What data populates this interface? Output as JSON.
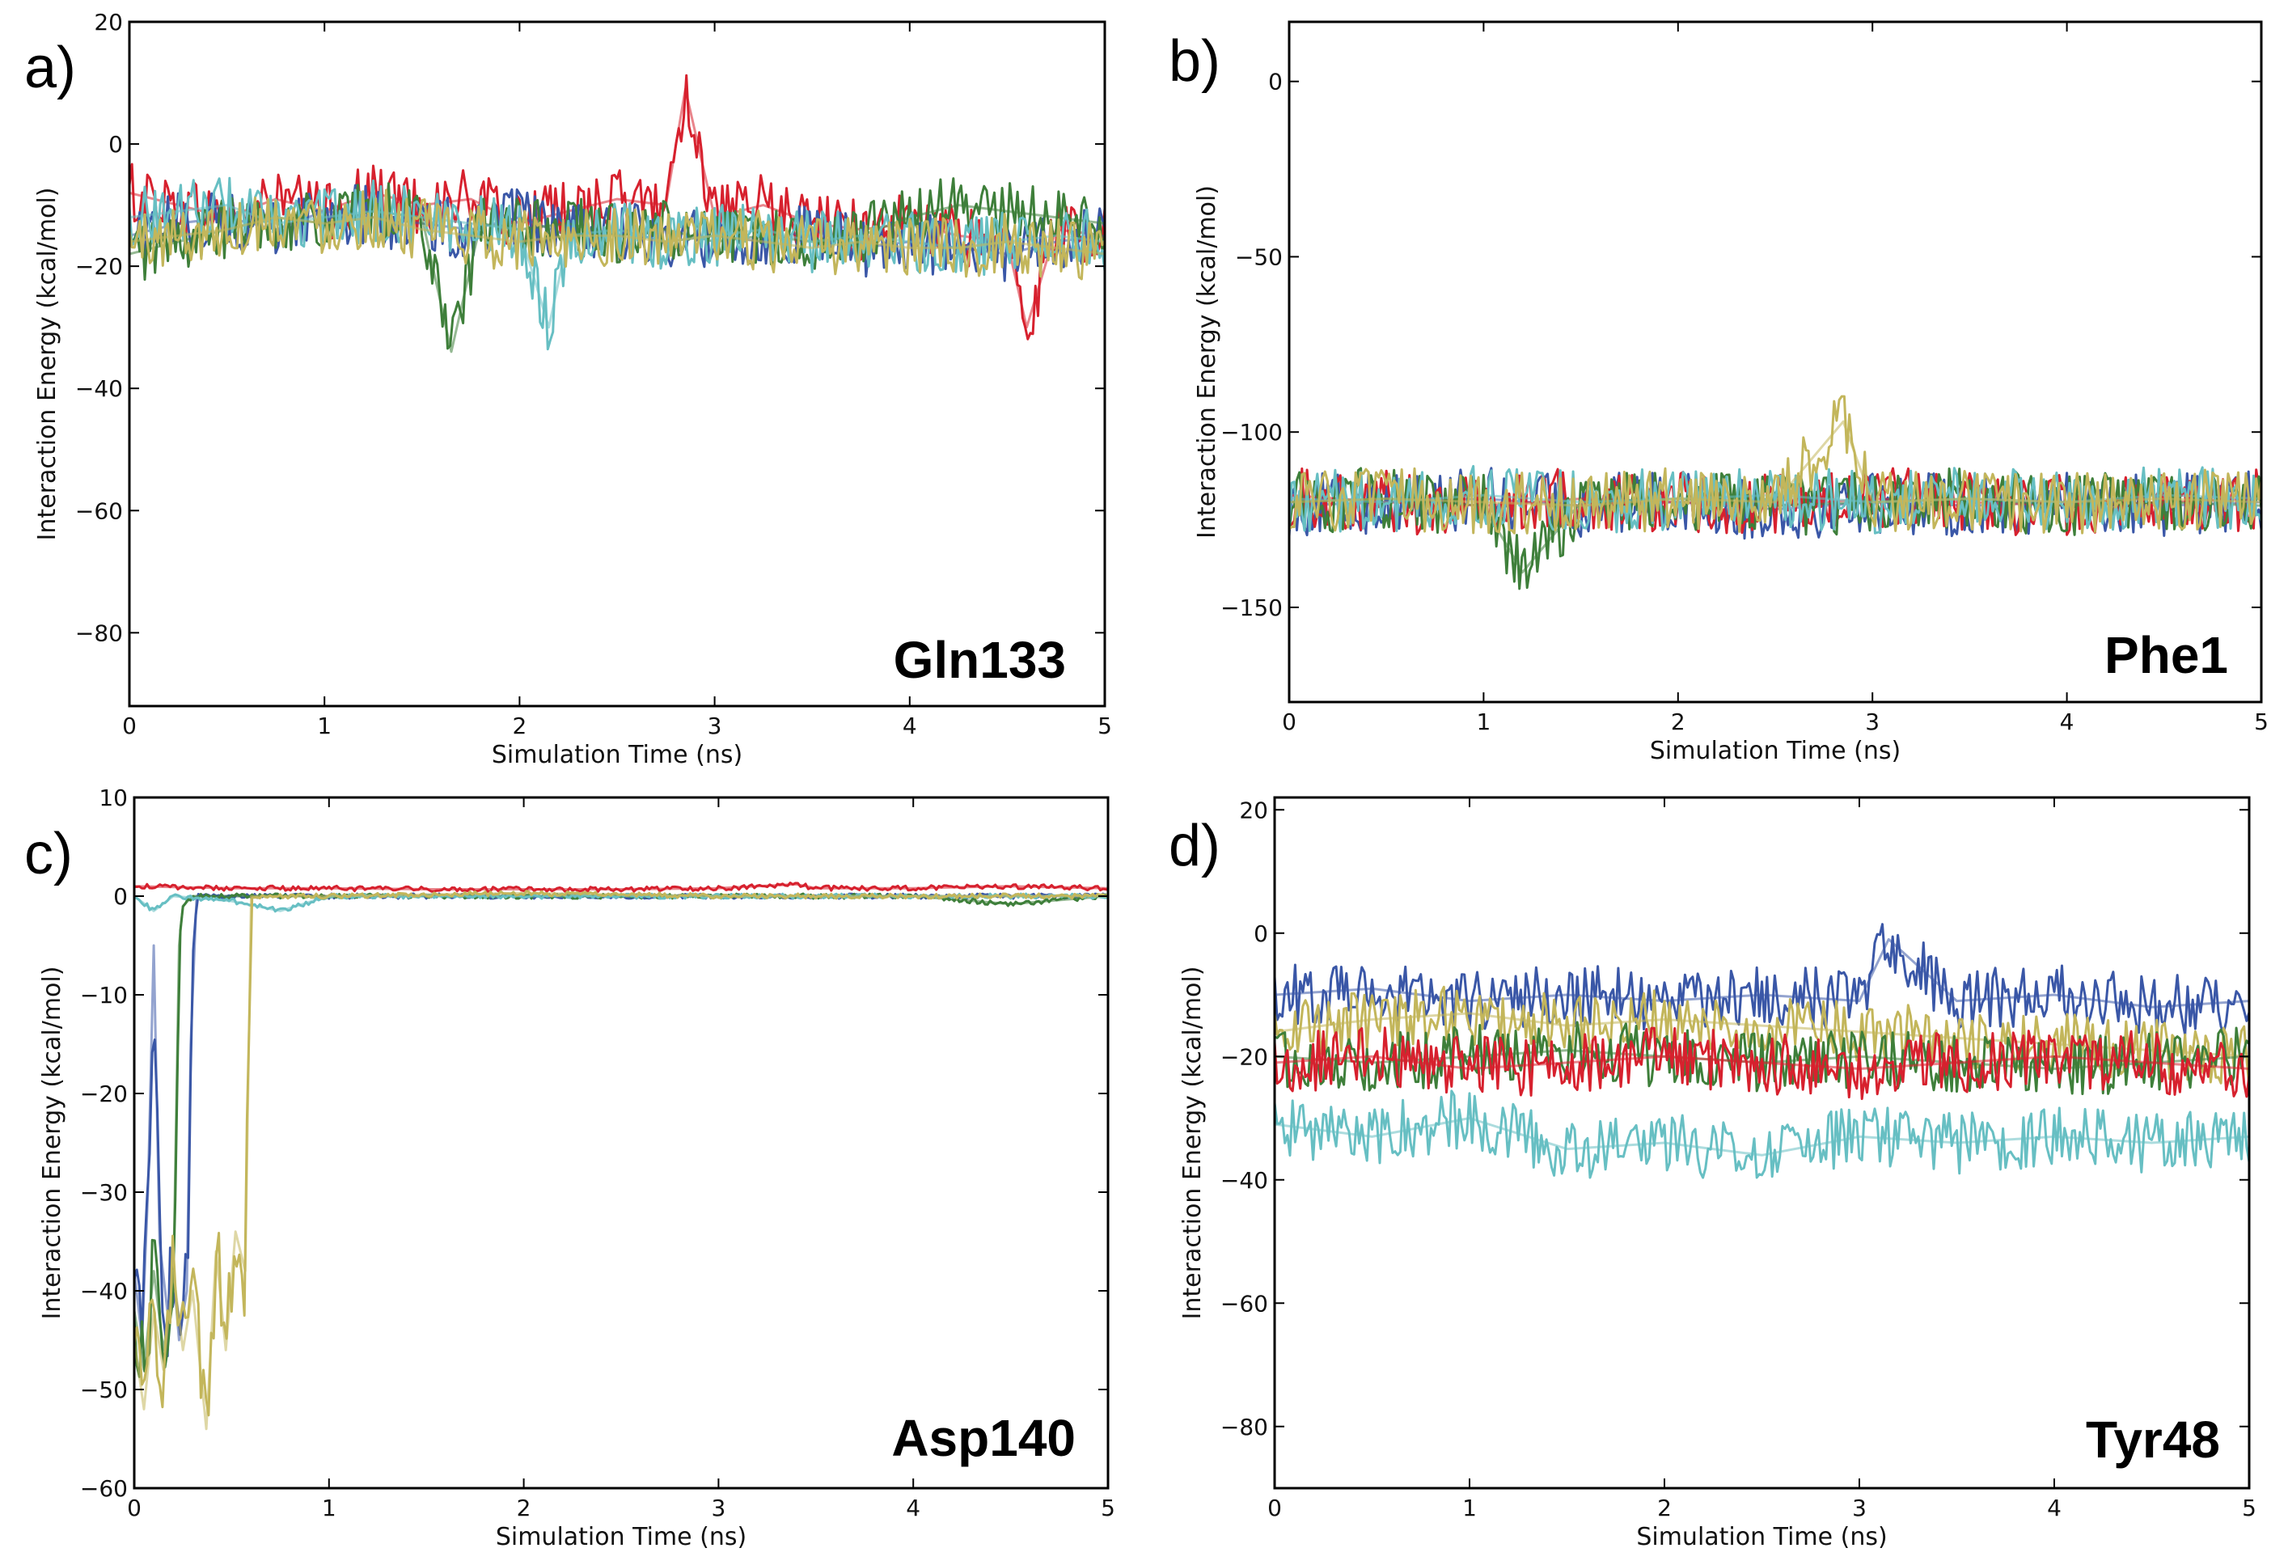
{
  "colors": {
    "blue": "#3a57a7",
    "green": "#3e7f3a",
    "red": "#d7212e",
    "cyan": "#67bfc3",
    "olive": "#c3b65b"
  },
  "chart_data": [
    {
      "type": "line",
      "panel_label": "a)",
      "annotation": "Gln133",
      "xlabel": "Simulation Time (ns)",
      "ylabel": "Interaction Energy (kcal/mol)",
      "xlim": [
        0,
        5
      ],
      "ylim": [
        -92,
        20
      ],
      "xticks": [
        0,
        1,
        2,
        3,
        4,
        5
      ],
      "yticks": [
        20,
        0,
        -20,
        -40,
        -60,
        -80
      ],
      "grid": false,
      "series": [
        {
          "color": "#d7212e",
          "x": [
            0,
            0.25,
            0.5,
            0.75,
            1,
            1.25,
            1.5,
            1.75,
            2,
            2.25,
            2.5,
            2.75,
            2.85,
            3,
            3.25,
            3.5,
            3.75,
            4,
            4.25,
            4.5,
            4.6,
            4.75,
            5
          ],
          "y": [
            -8,
            -10,
            -12,
            -9,
            -11,
            -8,
            -10,
            -9,
            -13,
            -11,
            -9,
            -10,
            9,
            -12,
            -10,
            -13,
            -14,
            -13,
            -15,
            -16,
            -30,
            -14,
            -15
          ]
        },
        {
          "color": "#3a57a7",
          "x": [
            0,
            0.25,
            0.5,
            0.75,
            1,
            1.25,
            1.5,
            1.75,
            2,
            2.25,
            2.5,
            2.75,
            3,
            3.25,
            3.5,
            3.75,
            4,
            4.25,
            4.5,
            4.75,
            5
          ],
          "y": [
            -15,
            -13,
            -12,
            -14,
            -11,
            -12,
            -13,
            -14,
            -12,
            -15,
            -14,
            -16,
            -15,
            -16,
            -14,
            -17,
            -16,
            -17,
            -18,
            -16,
            -15
          ]
        },
        {
          "color": "#3e7f3a",
          "x": [
            0,
            0.25,
            0.5,
            0.75,
            1,
            1.25,
            1.5,
            1.65,
            1.8,
            2,
            2.25,
            2.5,
            2.75,
            3,
            3.25,
            3.5,
            3.75,
            4,
            4.25,
            4.5,
            4.75,
            5
          ],
          "y": [
            -18,
            -16,
            -14,
            -12,
            -13,
            -11,
            -12,
            -34,
            -13,
            -14,
            -13,
            -15,
            -14,
            -16,
            -15,
            -16,
            -15,
            -12,
            -10,
            -11,
            -12,
            -13
          ]
        },
        {
          "color": "#67bfc3",
          "x": [
            0,
            0.25,
            0.5,
            0.75,
            1,
            1.25,
            1.5,
            1.75,
            2,
            2.15,
            2.25,
            2.5,
            2.75,
            3,
            3.25,
            3.5,
            3.75,
            4,
            4.25,
            4.5,
            4.75,
            5
          ],
          "y": [
            -12,
            -11,
            -10,
            -13,
            -12,
            -11,
            -12,
            -13,
            -14,
            -30,
            -15,
            -14,
            -16,
            -15,
            -14,
            -16,
            -15,
            -16,
            -17,
            -16,
            -15,
            -16
          ]
        },
        {
          "color": "#c3b65b",
          "x": [
            0,
            0.25,
            0.5,
            0.75,
            1,
            1.25,
            1.5,
            1.75,
            2,
            2.25,
            2.5,
            2.75,
            3,
            3.25,
            3.5,
            3.75,
            4,
            4.25,
            4.5,
            4.75,
            5
          ],
          "y": [
            -16,
            -15,
            -14,
            -12,
            -13,
            -12,
            -14,
            -15,
            -16,
            -15,
            -15,
            -16,
            -15,
            -16,
            -17,
            -16,
            -17,
            -17,
            -16,
            -17,
            -18
          ]
        }
      ]
    },
    {
      "type": "line",
      "panel_label": "b)",
      "annotation": "Phe1",
      "xlabel": "Simulation Time (ns)",
      "ylabel": "Interaction Energy (kcal/mol)",
      "xlim": [
        0,
        5
      ],
      "ylim": [
        -177,
        17
      ],
      "xticks": [
        0,
        1,
        2,
        3,
        4,
        5
      ],
      "yticks": [
        0,
        -50,
        -100,
        -150
      ],
      "grid": false,
      "series": [
        {
          "color": "#3a57a7",
          "x": [
            0,
            0.5,
            1,
            1.5,
            2,
            2.5,
            3,
            3.5,
            4,
            4.5,
            5
          ],
          "y": [
            -121,
            -120,
            -119,
            -121,
            -120,
            -122,
            -120,
            -121,
            -120,
            -121,
            -120
          ]
        },
        {
          "color": "#d7212e",
          "x": [
            0,
            0.5,
            1,
            1.5,
            2,
            2.5,
            3,
            3.5,
            4,
            4.5,
            5
          ],
          "y": [
            -118,
            -120,
            -121,
            -119,
            -120,
            -121,
            -119,
            -120,
            -121,
            -120,
            -119
          ]
        },
        {
          "color": "#3e7f3a",
          "x": [
            0,
            0.5,
            1,
            1.2,
            1.5,
            2,
            2.5,
            3,
            3.5,
            4,
            4.5,
            5
          ],
          "y": [
            -120,
            -119,
            -121,
            -140,
            -120,
            -119,
            -121,
            -120,
            -119,
            -121,
            -120,
            -121
          ]
        },
        {
          "color": "#67bfc3",
          "x": [
            0,
            0.5,
            1,
            1.5,
            2,
            2.5,
            3,
            3.5,
            4,
            4.5,
            5
          ],
          "y": [
            -119,
            -120,
            -118,
            -120,
            -119,
            -118,
            -120,
            -119,
            -120,
            -118,
            -119
          ]
        },
        {
          "color": "#c3b65b",
          "x": [
            0,
            0.5,
            1,
            1.5,
            2,
            2.5,
            2.85,
            3,
            3.5,
            4,
            4.5,
            5
          ],
          "y": [
            -120,
            -119,
            -120,
            -121,
            -119,
            -120,
            -97,
            -120,
            -119,
            -120,
            -119,
            -120
          ]
        }
      ]
    },
    {
      "type": "line",
      "panel_label": "c)",
      "annotation": "Asp140",
      "xlabel": "Simulation Time (ns)",
      "ylabel": "Interaction Energy (kcal/mol)",
      "xlim": [
        0,
        5
      ],
      "ylim": [
        -60,
        10
      ],
      "xticks": [
        0,
        1,
        2,
        3,
        4,
        5
      ],
      "yticks": [
        10,
        0,
        -10,
        -20,
        -30,
        -40,
        -50,
        -60
      ],
      "grid": false,
      "series": [
        {
          "color": "#d7212e",
          "x": [
            0,
            0.5,
            1,
            1.5,
            2,
            2.5,
            3,
            3.4,
            3.5,
            4,
            4.5,
            5
          ],
          "y": [
            1,
            0.8,
            0.8,
            0.7,
            0.7,
            0.7,
            0.8,
            1.2,
            0.8,
            0.8,
            1,
            0.8
          ]
        },
        {
          "color": "#3a57a7",
          "x": [
            0,
            0.04,
            0.07,
            0.1,
            0.13,
            0.17,
            0.2,
            0.23,
            0.27,
            0.29,
            0.32,
            0.5,
            1,
            2,
            3,
            4,
            5
          ],
          "y": [
            -38,
            -45,
            -30,
            -5,
            -35,
            -42,
            -38,
            -45,
            -40,
            -15,
            0,
            0,
            0,
            0,
            0,
            0,
            0
          ]
        },
        {
          "color": "#3e7f3a",
          "x": [
            0,
            0.05,
            0.1,
            0.15,
            0.2,
            0.23,
            0.25,
            0.3,
            0.5,
            1,
            2,
            3,
            4,
            4.5,
            5
          ],
          "y": [
            -42,
            -48,
            -38,
            -46,
            -40,
            -5,
            -1,
            0,
            0,
            0,
            0,
            0,
            0,
            -0.8,
            0
          ]
        },
        {
          "color": "#67bfc3",
          "x": [
            0,
            0.1,
            0.2,
            0.5,
            0.75,
            1,
            2,
            3,
            4,
            5
          ],
          "y": [
            0,
            -1.5,
            0,
            -0.5,
            -1.5,
            0,
            0,
            0,
            0,
            0
          ]
        },
        {
          "color": "#c3b65b",
          "x": [
            0,
            0.05,
            0.1,
            0.15,
            0.2,
            0.25,
            0.3,
            0.37,
            0.42,
            0.47,
            0.52,
            0.57,
            0.6,
            1,
            2,
            3,
            4,
            5
          ],
          "y": [
            -45,
            -52,
            -42,
            -48,
            -38,
            -46,
            -40,
            -54,
            -36,
            -46,
            -34,
            -38,
            0,
            0,
            0.3,
            0,
            0,
            0
          ]
        }
      ]
    },
    {
      "type": "line",
      "panel_label": "d)",
      "annotation": "Tyr48",
      "xlabel": "Simulation Time (ns)",
      "ylabel": "Interaction Energy (kcal/mol)",
      "xlim": [
        0,
        5
      ],
      "ylim": [
        -90,
        22
      ],
      "xticks": [
        0,
        1,
        2,
        3,
        4,
        5
      ],
      "yticks": [
        20,
        0,
        -20,
        -40,
        -60,
        -80
      ],
      "grid": false,
      "series": [
        {
          "color": "#3a57a7",
          "x": [
            0,
            0.5,
            1,
            1.5,
            2,
            2.5,
            3,
            3.15,
            3.5,
            4,
            4.5,
            5
          ],
          "y": [
            -10,
            -9,
            -11,
            -10,
            -11,
            -10,
            -11,
            -1,
            -11,
            -10,
            -12,
            -11
          ]
        },
        {
          "color": "#c3b65b",
          "x": [
            0,
            0.5,
            1,
            1.5,
            2,
            2.5,
            3,
            3.5,
            4,
            4.5,
            5
          ],
          "y": [
            -16,
            -14,
            -13,
            -15,
            -14,
            -15,
            -16,
            -17,
            -18,
            -19,
            -20
          ]
        },
        {
          "color": "#3e7f3a",
          "x": [
            0,
            0.5,
            1,
            1.5,
            2,
            2.5,
            3,
            3.5,
            4,
            4.5,
            5
          ],
          "y": [
            -20,
            -21,
            -20,
            -19,
            -20,
            -21,
            -20,
            -21,
            -22,
            -21,
            -20
          ]
        },
        {
          "color": "#d7212e",
          "x": [
            0,
            0.5,
            1,
            1.5,
            2,
            2.5,
            3,
            3.5,
            4,
            4.5,
            5
          ],
          "y": [
            -21,
            -20,
            -22,
            -21,
            -20,
            -21,
            -22,
            -21,
            -20,
            -21,
            -22
          ]
        },
        {
          "color": "#67bfc3",
          "x": [
            0,
            0.5,
            1,
            1.5,
            2,
            2.5,
            3,
            3.5,
            4,
            4.5,
            5
          ],
          "y": [
            -31,
            -33,
            -30,
            -35,
            -34,
            -36,
            -33,
            -34,
            -33,
            -34,
            -33
          ]
        }
      ]
    }
  ]
}
